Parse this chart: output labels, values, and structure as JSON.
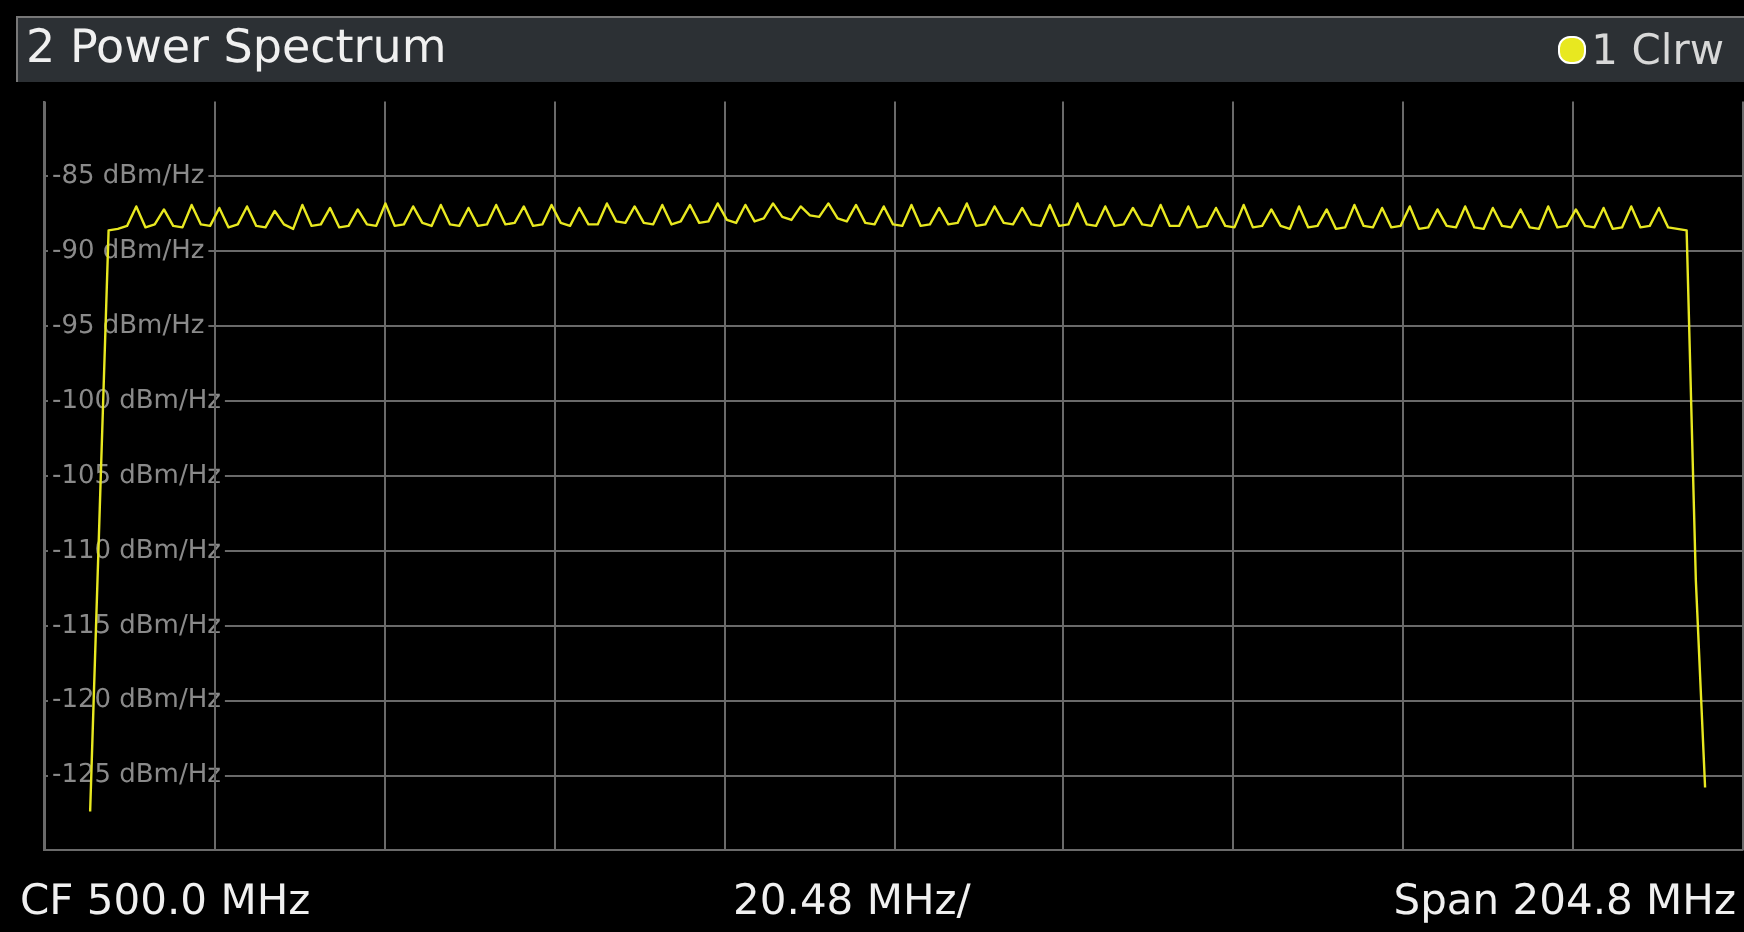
{
  "chart_data": {
    "type": "line",
    "title": "2 Power Spectrum",
    "annotations": [
      "CF 500.0 MHz",
      "20.48 MHz/",
      "Span 204.8 MHz"
    ],
    "categories": [
      null,
      null,
      null,
      null,
      null,
      null,
      null,
      null,
      null,
      null,
      null,
      null,
      null,
      null,
      null,
      null,
      null,
      null,
      null,
      null,
      null,
      null,
      null,
      null,
      null,
      null,
      null,
      null,
      null,
      null,
      null,
      null,
      null,
      null,
      null,
      null,
      null,
      null,
      null,
      null,
      null,
      null,
      null,
      null,
      null,
      null,
      null,
      null,
      null,
      null,
      null,
      null,
      null,
      null,
      null,
      null,
      null,
      null,
      null,
      null,
      null,
      null,
      null,
      null,
      null,
      null,
      null,
      null,
      null,
      null,
      null,
      null,
      null,
      null,
      null,
      null,
      null,
      null,
      null,
      null,
      null,
      null,
      null,
      null,
      null,
      null,
      null,
      null,
      null,
      null,
      null,
      null,
      null,
      null,
      null,
      null,
      null,
      null,
      null,
      null,
      null,
      null,
      null,
      null,
      null,
      null,
      null,
      null,
      null,
      null,
      null,
      null,
      null,
      null,
      null,
      null,
      null,
      null,
      null,
      null,
      null,
      null,
      null,
      null,
      null,
      null,
      null,
      null,
      null,
      null,
      null,
      null,
      null,
      null,
      null,
      null,
      null,
      null,
      null,
      null,
      null,
      null,
      null,
      null,
      null,
      null,
      null,
      null,
      null,
      null,
      null,
      null,
      null,
      null,
      null,
      null,
      null,
      null,
      null,
      null,
      null,
      null,
      null,
      null,
      null,
      null,
      null,
      null,
      null,
      null,
      null,
      null,
      null,
      null,
      null,
      null,
      null,
      null,
      null,
      null,
      null,
      null,
      null,
      null,
      null
    ],
    "ylim": [
      -130,
      -80
    ],
    "yticks": [
      {
        "value": -85,
        "label": "-85 dBm/Hz"
      },
      {
        "value": -90,
        "label": "-90 dBm/Hz"
      },
      {
        "value": -95,
        "label": "-95 dBm/Hz"
      },
      {
        "value": -100,
        "label": "-100 dBm/Hz"
      },
      {
        "value": -105,
        "label": "-105 dBm/Hz"
      },
      {
        "value": -110,
        "label": "-110 dBm/Hz"
      },
      {
        "value": -115,
        "label": "-115 dBm/Hz"
      },
      {
        "value": -120,
        "label": "-120 dBm/Hz"
      },
      {
        "value": -125,
        "label": "-125 dBm/Hz"
      }
    ],
    "tick_labels": "y",
    "grid": true,
    "legend": "top right",
    "marker": "none",
    "line_style": "solid",
    "series": [
      {
        "name": "1 Clrw",
        "color": "#e8e820",
        "values": [
          null,
          null,
          null,
          null,
          null,
          -127.4,
          -108,
          -88.6,
          -88.5,
          -88.3,
          -87.0,
          -88.4,
          -88.2,
          -87.2,
          -88.3,
          -88.4,
          -86.9,
          -88.2,
          -88.3,
          -87.1,
          -88.4,
          -88.2,
          -87.0,
          -88.3,
          -88.4,
          -87.3,
          -88.2,
          -88.5,
          -86.9,
          -88.3,
          -88.2,
          -87.1,
          -88.4,
          -88.3,
          -87.2,
          -88.2,
          -88.3,
          -86.8,
          -88.3,
          -88.2,
          -87.0,
          -88.1,
          -88.3,
          -86.9,
          -88.2,
          -88.3,
          -87.1,
          -88.3,
          -88.2,
          -86.9,
          -88.2,
          -88.1,
          -87.0,
          -88.3,
          -88.2,
          -86.9,
          -88.1,
          -88.3,
          -87.1,
          -88.2,
          -88.2,
          -86.8,
          -88.0,
          -88.1,
          -87.0,
          -88.1,
          -88.2,
          -86.9,
          -88.2,
          -88.0,
          -86.9,
          -88.1,
          -88.0,
          -86.8,
          -87.9,
          -88.1,
          -86.9,
          -88.0,
          -87.8,
          -86.8,
          -87.7,
          -87.9,
          -87.0,
          -87.6,
          -87.7,
          -86.8,
          -87.8,
          -88.0,
          -86.9,
          -88.1,
          -88.2,
          -87.0,
          -88.2,
          -88.3,
          -86.9,
          -88.3,
          -88.2,
          -87.1,
          -88.2,
          -88.1,
          -86.8,
          -88.3,
          -88.2,
          -87.0,
          -88.1,
          -88.2,
          -87.1,
          -88.2,
          -88.3,
          -86.9,
          -88.3,
          -88.2,
          -86.8,
          -88.2,
          -88.3,
          -87.0,
          -88.3,
          -88.2,
          -87.1,
          -88.2,
          -88.3,
          -86.9,
          -88.3,
          -88.3,
          -87.0,
          -88.4,
          -88.3,
          -87.1,
          -88.3,
          -88.4,
          -86.9,
          -88.4,
          -88.3,
          -87.2,
          -88.3,
          -88.5,
          -87.0,
          -88.4,
          -88.3,
          -87.2,
          -88.5,
          -88.4,
          -86.9,
          -88.3,
          -88.4,
          -87.1,
          -88.4,
          -88.3,
          -87.0,
          -88.5,
          -88.4,
          -87.2,
          -88.3,
          -88.4,
          -87.0,
          -88.4,
          -88.5,
          -87.1,
          -88.3,
          -88.4,
          -87.2,
          -88.4,
          -88.5,
          -87.0,
          -88.4,
          -88.3,
          -87.2,
          -88.3,
          -88.4,
          -87.1,
          -88.5,
          -88.4,
          -87.0,
          -88.4,
          -88.3,
          -87.1,
          -88.4,
          -88.5,
          -88.6,
          -112,
          -125.8,
          null,
          null,
          null,
          null
        ]
      }
    ]
  }
}
